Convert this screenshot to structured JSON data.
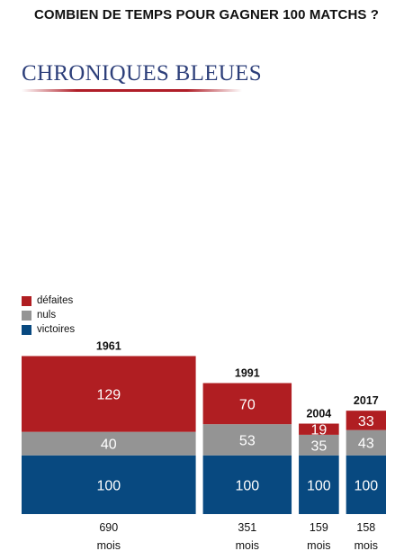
{
  "title": "COMBIEN DE TEMPS POUR GAGNER 100 MATCHS ?",
  "logo": {
    "text": "CHRONIQUES BLEUES"
  },
  "legend": [
    {
      "label": "défaites",
      "color": "#b01e22"
    },
    {
      "label": "nuls",
      "color": "#949494"
    },
    {
      "label": "victoires",
      "color": "#084980"
    }
  ],
  "chart_data": {
    "type": "bar",
    "stacked": true,
    "categories": [
      "1961",
      "1991",
      "2004",
      "2017"
    ],
    "series": [
      {
        "name": "victoires",
        "values": [
          100,
          100,
          100,
          100
        ],
        "color": "#084980"
      },
      {
        "name": "nuls",
        "values": [
          40,
          53,
          35,
          43
        ],
        "color": "#949494"
      },
      {
        "name": "défaites",
        "values": [
          129,
          70,
          19,
          33
        ],
        "color": "#b01e22"
      }
    ],
    "widths_months": [
      690,
      351,
      159,
      158
    ],
    "width_labels": [
      "690",
      "351",
      "159",
      "158"
    ],
    "width_unit": "mois",
    "legend_position": "left",
    "grid": false
  }
}
